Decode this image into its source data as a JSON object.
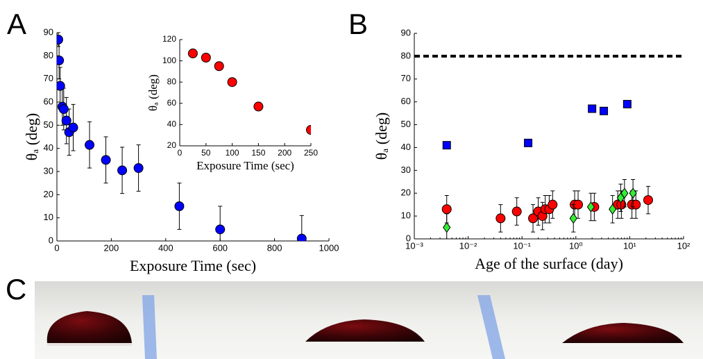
{
  "chart_data": [
    {
      "panel": "A",
      "type": "scatter",
      "x_label": "Exposure Time (sec)",
      "y_label": "θₐ (deg)",
      "xlim": [
        0,
        1000
      ],
      "xticks": [
        0,
        200,
        400,
        600,
        800,
        1000
      ],
      "ylim": [
        0,
        90
      ],
      "yticks": [
        0,
        10,
        20,
        30,
        40,
        50,
        60,
        70,
        80,
        90
      ],
      "series": [
        {
          "color": "#0000ff",
          "marker": "circle",
          "x": [
            5,
            8,
            12,
            20,
            25,
            35,
            45,
            60,
            120,
            180,
            240,
            300,
            450,
            600,
            900
          ],
          "values": [
            87,
            78,
            67,
            58,
            57,
            52,
            47,
            49,
            41.5,
            35,
            30.5,
            31.5,
            15,
            5,
            1
          ],
          "errors": [
            3,
            8,
            8,
            8,
            9,
            10,
            10,
            10,
            10,
            10,
            10,
            10,
            10,
            10,
            10
          ]
        }
      ]
    },
    {
      "type": "scatter",
      "x_label": "Exposure Time (sec)",
      "y_label": "θₐ (deg)",
      "xlim": [
        0,
        250
      ],
      "xticks": [
        0,
        50,
        100,
        150,
        200,
        250
      ],
      "ylim": [
        20,
        120
      ],
      "yticks": [
        20,
        40,
        60,
        80,
        100,
        120
      ],
      "series": [
        {
          "color": "#ff0000",
          "marker": "circle",
          "x": [
            25,
            50,
            75,
            100,
            150,
            250
          ],
          "values": [
            107,
            103,
            95,
            80,
            57,
            35
          ]
        }
      ]
    },
    {
      "panel": "B",
      "type": "scatter",
      "x_label": "Age of the surface (day)",
      "y_label": "θₐ (deg)",
      "log_x": true,
      "xlim": [
        0.001,
        100
      ],
      "xticks": [
        {
          "value": 0.001,
          "label": "10⁻³"
        },
        {
          "value": 0.01,
          "label": "10⁻²"
        },
        {
          "value": 0.1,
          "label": "10⁻¹"
        },
        {
          "value": 1,
          "label": "10⁰"
        },
        {
          "value": 10,
          "label": "10¹"
        },
        {
          "value": 100,
          "label": "10²"
        }
      ],
      "ylim": [
        0,
        90
      ],
      "yticks": [
        0,
        10,
        20,
        30,
        40,
        50,
        60,
        70,
        80,
        90
      ],
      "hline": 80,
      "series": [
        {
          "color": "#0000ff",
          "marker": "square",
          "x": [
            0.004,
            0.13,
            2,
            3.3,
            9
          ],
          "values": [
            41,
            42,
            57,
            56,
            59
          ],
          "errors": [
            1.5,
            1.5,
            1.5,
            1.5,
            1.5
          ]
        },
        {
          "color": "#ff0000",
          "marker": "circle",
          "x": [
            0.004,
            0.04,
            0.08,
            0.16,
            0.2,
            0.24,
            0.27,
            0.32,
            0.37,
            0.95,
            1.1,
            2.2,
            6,
            7,
            11,
            13,
            22
          ],
          "values": [
            13,
            9,
            12,
            9,
            12,
            10,
            13,
            13,
            15,
            15,
            15,
            14,
            15,
            15,
            15,
            15,
            17
          ],
          "errors": [
            6,
            6,
            6,
            6,
            6,
            6,
            6,
            6,
            6,
            6,
            6,
            6,
            6,
            6,
            6,
            6,
            6
          ]
        },
        {
          "color": "#33ee33",
          "marker": "diamond",
          "x": [
            0.004,
            0.9,
            1.9,
            4.8,
            6.8,
            8,
            11.5
          ],
          "values": [
            5,
            9,
            14,
            13,
            18,
            20,
            20
          ],
          "errors": [
            6,
            6,
            6,
            6,
            6,
            6,
            6
          ]
        }
      ]
    }
  ],
  "photo_panel": "C"
}
